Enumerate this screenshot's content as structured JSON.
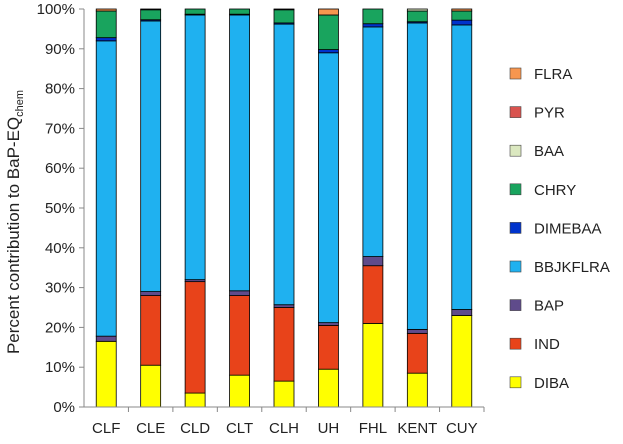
{
  "chart_data": {
    "type": "bar",
    "stacked": true,
    "normalized": true,
    "categories": [
      "CLF",
      "CLE",
      "CLD",
      "CLT",
      "CLH",
      "UH",
      "FHL",
      "KENT",
      "CUY"
    ],
    "ylabel_main": "Percent contribution to BaP-EQ",
    "ylabel_sub": "chem",
    "xlabel": "",
    "title": "",
    "ylim": [
      0,
      100
    ],
    "yticks": [
      0,
      10,
      20,
      30,
      40,
      50,
      60,
      70,
      80,
      90,
      100
    ],
    "ytick_labels": [
      "0%",
      "10%",
      "20%",
      "30%",
      "40%",
      "50%",
      "60%",
      "70%",
      "80%",
      "90%",
      "100%"
    ],
    "grid": false,
    "legend_position": "right",
    "series": [
      {
        "name": "DIBA",
        "color": "#ffff00",
        "values": [
          16.5,
          10.5,
          3.5,
          8,
          6.5,
          9.5,
          21,
          8.5,
          23
        ]
      },
      {
        "name": "IND",
        "color": "#e8431a",
        "values": [
          0,
          17.5,
          28,
          20,
          18.5,
          11,
          14.5,
          10,
          0
        ]
      },
      {
        "name": "BAP",
        "color": "#5f4b8b",
        "values": [
          1.3,
          1,
          0.5,
          1.2,
          0.7,
          0.7,
          2.3,
          1,
          1.5
        ]
      },
      {
        "name": "BBJKFLRA",
        "color": "#1fb1f0",
        "values": [
          74.2,
          68,
          66.5,
          69.3,
          70.5,
          67.8,
          57.7,
          77,
          71.5
        ]
      },
      {
        "name": "DIMEBAA",
        "color": "#0033cc",
        "values": [
          0.8,
          0.3,
          0.2,
          0.2,
          0.3,
          0.8,
          0.8,
          0.3,
          1.2
        ]
      },
      {
        "name": "CHRY",
        "color": "#19a45e",
        "values": [
          6.7,
          2.5,
          1.3,
          1.3,
          3.3,
          8.7,
          3.7,
          2.7,
          2.3
        ]
      },
      {
        "name": "BAA",
        "color": "#dbe8c0",
        "values": [
          0,
          0.2,
          0,
          0,
          0.2,
          0,
          0,
          0.5,
          0
        ]
      },
      {
        "name": "PYR",
        "color": "#d9534f",
        "values": [
          0,
          0,
          0,
          0,
          0,
          0,
          0,
          0,
          0
        ]
      },
      {
        "name": "FLRA",
        "color": "#f7964f",
        "values": [
          0.5,
          0,
          0,
          0,
          0,
          1.5,
          0,
          0,
          0.5
        ]
      }
    ],
    "legend_order": [
      "FLRA",
      "PYR",
      "BAA",
      "CHRY",
      "DIMEBAA",
      "BBJKFLRA",
      "BAP",
      "IND",
      "DIBA"
    ]
  }
}
